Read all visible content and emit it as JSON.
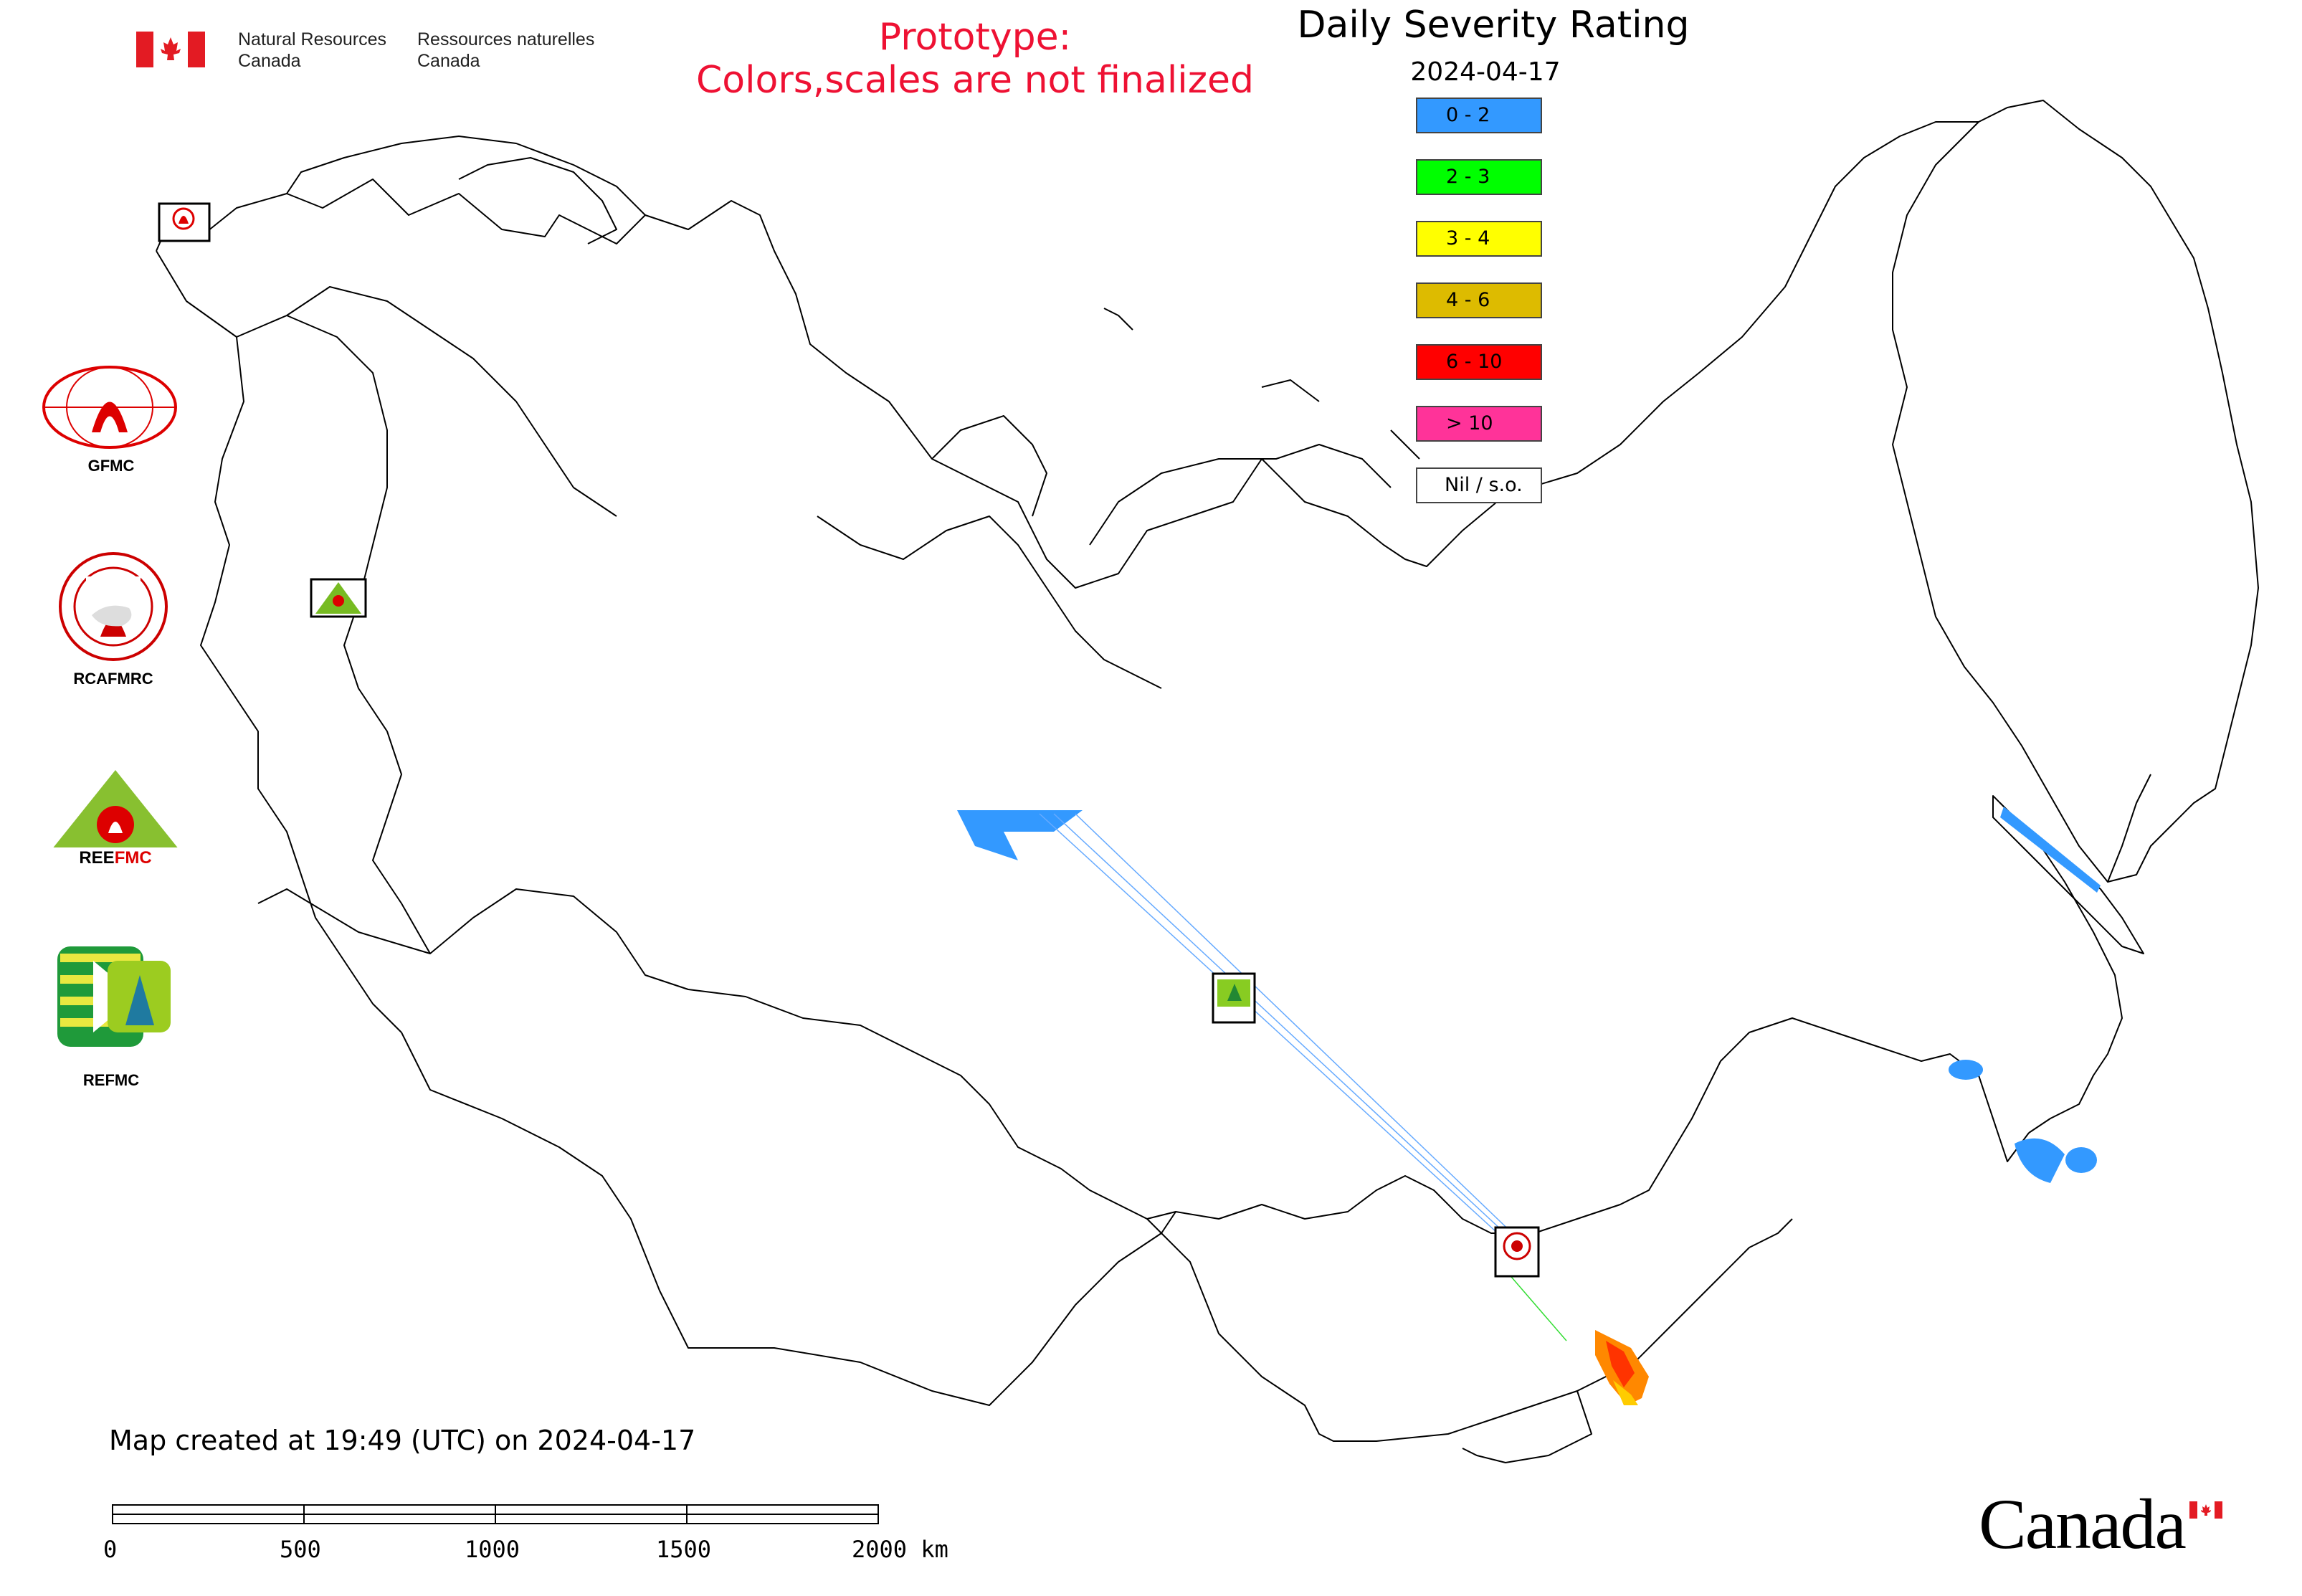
{
  "header": {
    "agency_en_line1": "Natural Resources",
    "agency_en_line2": "Canada",
    "agency_fr_line1": "Ressources naturelles",
    "agency_fr_line2": "Canada",
    "prototype_line1": "Prototype:",
    "prototype_line2": "Colors,scales are not finalized",
    "title": "Daily Severity Rating",
    "date": "2024-04-17"
  },
  "legend": [
    {
      "label": "0 - 2",
      "color": "#3399ff"
    },
    {
      "label": "2 - 3",
      "color": "#00ff00"
    },
    {
      "label": "3 - 4",
      "color": "#ffff00"
    },
    {
      "label": "4 - 6",
      "color": "#ddbb00"
    },
    {
      "label": "6 - 10",
      "color": "#ff0000"
    },
    {
      "label": "> 10",
      "color": "#ff3399"
    },
    {
      "label": "Nil / s.o.",
      "color": "#ffffff"
    }
  ],
  "agencies": [
    {
      "name": "GFMC",
      "icon": "gfmc-logo-icon"
    },
    {
      "name": "RCAFMRC",
      "icon": "rcafmrc-logo-icon"
    },
    {
      "name": "REEFMC",
      "icon": "reefmc-logo-icon"
    },
    {
      "name": "REFMC",
      "icon": "refmc-logo-icon"
    }
  ],
  "map_markers": [
    {
      "name": "GFMC",
      "icon": "gfmc-marker-icon"
    },
    {
      "name": "REEFMC",
      "icon": "reefmc-marker-icon"
    },
    {
      "name": "REFMC",
      "icon": "refmc-marker-icon"
    },
    {
      "name": "RCAFMRC",
      "icon": "rcafmrc-marker-icon"
    }
  ],
  "footer": {
    "created_text": "Map created at 19:49 (UTC) on 2024-04-17",
    "scale_labels": [
      "0",
      "500",
      "1000",
      "1500",
      "2000 km"
    ],
    "wordmark": "Canada"
  },
  "colors": {
    "prototype_text": "#ee1133",
    "flag_red": "#e31b23",
    "borders": "#000000"
  }
}
